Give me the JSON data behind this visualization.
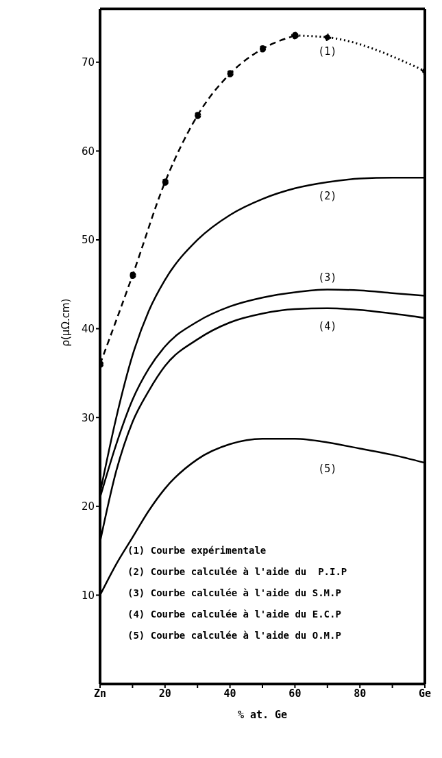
{
  "chart_data": {
    "type": "line",
    "xlabel": "% at. Ge",
    "ylabel": "ρ(μΩ.cm)",
    "xlim": [
      0,
      100
    ],
    "ylim": [
      0,
      76
    ],
    "xticks": [
      {
        "value": 0,
        "label": "Zn"
      },
      {
        "value": 10,
        "label": null
      },
      20,
      {
        "value": 30,
        "label": null
      },
      40,
      {
        "value": 50,
        "label": null
      },
      60,
      {
        "value": 70,
        "label": null
      },
      80,
      {
        "value": 90,
        "label": null
      },
      {
        "value": 100,
        "label": "Ge"
      }
    ],
    "yticks": [
      10,
      20,
      30,
      40,
      50,
      60,
      70
    ],
    "series": [
      {
        "color": "#000000",
        "marker": "circle",
        "line_style": "dashed",
        "x": [
          0,
          10,
          20,
          30,
          40,
          50,
          60
        ],
        "values": [
          36,
          46,
          56.5,
          64,
          68.7,
          71.5,
          73
        ]
      },
      {
        "name": "(1)",
        "color": "#000000",
        "marker": "circle",
        "line_style": "dotted",
        "x": [
          60,
          70,
          100
        ],
        "values": [
          73,
          72.8,
          69
        ]
      },
      {
        "name": "(2)",
        "color": "#000000",
        "marker": "none",
        "line_style": "solid",
        "x": [
          0,
          5,
          10,
          15,
          20,
          30,
          40,
          50,
          60,
          70,
          80,
          90,
          100
        ],
        "values": [
          21.5,
          30,
          37,
          42,
          45.5,
          50,
          52.8,
          54.6,
          55.8,
          56.5,
          56.9,
          57,
          57
        ]
      },
      {
        "name": "(3)",
        "color": "#000000",
        "marker": "none",
        "line_style": "solid",
        "x": [
          0,
          5,
          10,
          15,
          20,
          30,
          40,
          50,
          60,
          70,
          80,
          90,
          100
        ],
        "values": [
          21,
          27,
          32,
          35.5,
          38,
          40.8,
          42.5,
          43.5,
          44.1,
          44.4,
          44.3,
          44,
          43.7
        ]
      },
      {
        "name": "(4)",
        "color": "#000000",
        "marker": "none",
        "line_style": "solid",
        "x": [
          0,
          5,
          10,
          15,
          20,
          30,
          40,
          50,
          60,
          70,
          80,
          90,
          100
        ],
        "values": [
          16,
          24,
          29.5,
          33,
          35.8,
          38.8,
          40.7,
          41.7,
          42.2,
          42.3,
          42.1,
          41.7,
          41.2
        ]
      },
      {
        "name": "(5)",
        "color": "#000000",
        "marker": "none",
        "line_style": "solid",
        "x": [
          0,
          5,
          10,
          15,
          20,
          30,
          40,
          50,
          60,
          70,
          80,
          90,
          100
        ],
        "values": [
          10,
          13.5,
          16.5,
          19.5,
          22,
          25.3,
          27,
          27.6,
          27.6,
          27.2,
          26.5,
          25.8,
          24.9
        ]
      }
    ],
    "annotations": [
      "(1) Courbe expérimentale",
      "(2) Courbe calculée à l'aide du  P.I.P",
      "(3) Courbe calculée à l'aide du S.M.P",
      "(4) Courbe calculée à l'aide du E.C.P",
      "(5) Courbe calculée à l'aide du O.M.P"
    ]
  }
}
